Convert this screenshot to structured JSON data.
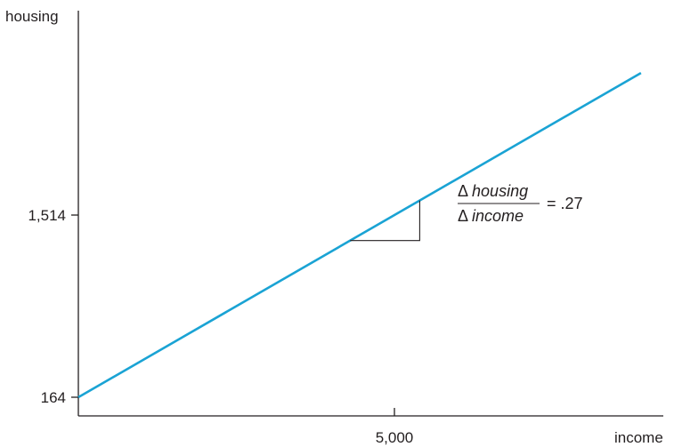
{
  "chart_data": {
    "type": "line",
    "ylabel": "housing",
    "xlabel": "income",
    "y_ticks": [
      {
        "value": 164,
        "label": "164"
      },
      {
        "value": 1514,
        "label": "1,514"
      }
    ],
    "x_ticks": [
      {
        "value": 5000,
        "label": "5,000"
      }
    ],
    "xlim": [
      0,
      9000
    ],
    "ylim": [
      0,
      3000
    ],
    "series": [
      {
        "color": "#1aa3d4",
        "x": [
          0,
          8900
        ],
        "y": [
          164,
          2567
        ]
      }
    ],
    "slope": 0.27,
    "annotation": {
      "numerator_symbol": "Δ",
      "numerator_var": "housing",
      "denominator_symbol": "Δ",
      "denominator_var": "income",
      "equals": "= .27",
      "triangle_x": [
        4300,
        5400
      ]
    },
    "grid": false,
    "colors": {
      "line": "#1aa3d4",
      "axis": "#231f20"
    }
  }
}
